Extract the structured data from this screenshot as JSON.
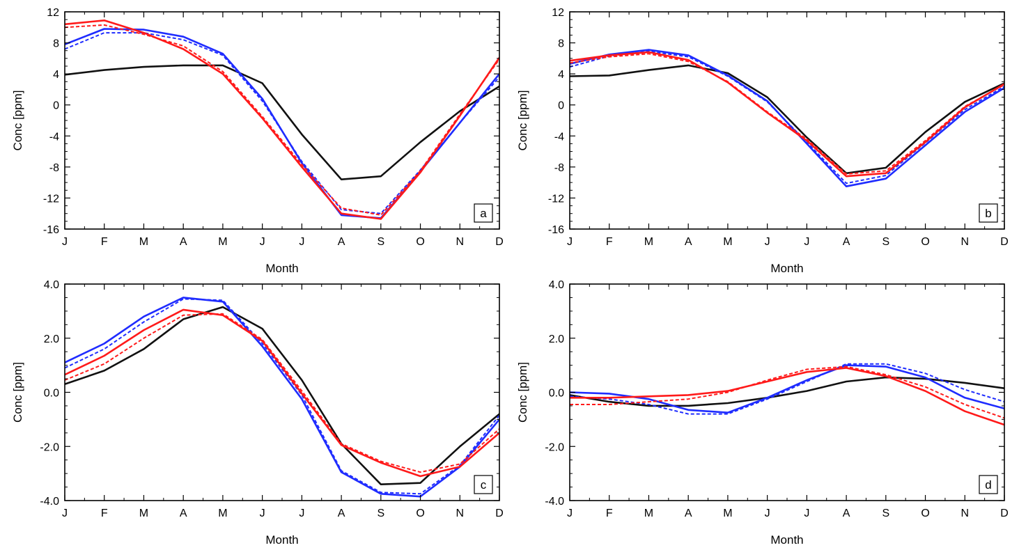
{
  "colors": {
    "black": "#111111",
    "blue": "#1f2cff",
    "red": "#ff1a1a"
  },
  "chart_data": [
    {
      "panel": "a",
      "type": "line",
      "x": [
        "J",
        "F",
        "M",
        "A",
        "M",
        "J",
        "J",
        "A",
        "S",
        "O",
        "N",
        "D"
      ],
      "xlabel": "Month",
      "ylabel": "Conc [ppm]",
      "ylim": [
        -16,
        12
      ],
      "yticks": [
        -16,
        -12,
        -8,
        -4,
        0,
        4,
        8,
        12
      ],
      "ytick_labels": [
        "-16",
        "-12",
        "-8",
        "-4",
        "0",
        "4",
        "8",
        "12"
      ],
      "series": [
        {
          "color": "black",
          "style": "solid",
          "values": [
            3.9,
            4.5,
            4.9,
            5.1,
            5.1,
            2.8,
            -3.8,
            -9.6,
            -9.2,
            -4.8,
            -0.8,
            2.4
          ]
        },
        {
          "color": "blue",
          "style": "solid",
          "values": [
            7.8,
            9.8,
            9.7,
            8.8,
            6.6,
            0.8,
            -7.5,
            -14.2,
            -14.6,
            -8.6,
            -2.3,
            4.0
          ]
        },
        {
          "color": "blue",
          "style": "dashed",
          "values": [
            7.2,
            9.3,
            9.3,
            8.4,
            6.4,
            0.5,
            -7.3,
            -13.5,
            -14.0,
            -8.4,
            -2.3,
            3.6
          ]
        },
        {
          "color": "red",
          "style": "solid",
          "values": [
            10.4,
            10.9,
            9.3,
            7.2,
            4.0,
            -1.7,
            -8.0,
            -14.0,
            -14.7,
            -8.7,
            -1.4,
            6.1
          ]
        },
        {
          "color": "red",
          "style": "dashed",
          "values": [
            10.0,
            10.3,
            9.1,
            7.6,
            4.3,
            -1.5,
            -7.7,
            -13.3,
            -14.2,
            -8.5,
            -1.2,
            5.9
          ]
        }
      ]
    },
    {
      "panel": "b",
      "type": "line",
      "x": [
        "J",
        "F",
        "M",
        "A",
        "M",
        "J",
        "J",
        "A",
        "S",
        "O",
        "N",
        "D"
      ],
      "xlabel": "Month",
      "ylabel": "Conc [ppm]",
      "ylim": [
        -16,
        12
      ],
      "yticks": [
        -16,
        -12,
        -8,
        -4,
        0,
        4,
        8,
        12
      ],
      "ytick_labels": [
        "-16",
        "-12",
        "-8",
        "-4",
        "0",
        "4",
        "8",
        "12"
      ],
      "series": [
        {
          "color": "black",
          "style": "solid",
          "values": [
            3.7,
            3.8,
            4.5,
            5.1,
            4.1,
            1.0,
            -4.2,
            -8.8,
            -8.1,
            -3.5,
            0.4,
            2.8
          ]
        },
        {
          "color": "blue",
          "style": "solid",
          "values": [
            5.3,
            6.5,
            7.1,
            6.4,
            3.8,
            0.5,
            -5.0,
            -10.5,
            -9.5,
            -5.2,
            -0.9,
            2.2
          ]
        },
        {
          "color": "blue",
          "style": "dashed",
          "values": [
            4.9,
            6.3,
            6.9,
            6.2,
            3.7,
            0.4,
            -4.8,
            -10.1,
            -9.1,
            -4.9,
            -0.6,
            2.4
          ]
        },
        {
          "color": "red",
          "style": "solid",
          "values": [
            5.7,
            6.4,
            6.8,
            5.8,
            2.9,
            -1.0,
            -4.6,
            -9.2,
            -8.8,
            -4.8,
            -0.3,
            2.7
          ]
        },
        {
          "color": "red",
          "style": "dashed",
          "values": [
            5.4,
            6.2,
            6.6,
            5.6,
            3.0,
            -0.9,
            -4.4,
            -8.9,
            -8.5,
            -4.6,
            -0.2,
            2.6
          ]
        }
      ]
    },
    {
      "panel": "c",
      "type": "line",
      "x": [
        "J",
        "F",
        "M",
        "A",
        "M",
        "J",
        "J",
        "A",
        "S",
        "O",
        "N",
        "D"
      ],
      "xlabel": "Month",
      "ylabel": "Conc [ppm]",
      "ylim": [
        -4,
        4
      ],
      "yticks": [
        -4,
        -2,
        0,
        2,
        4
      ],
      "ytick_labels": [
        "-4.0",
        "-2.0",
        "0.0",
        "2.0",
        "4.0"
      ],
      "series": [
        {
          "color": "black",
          "style": "solid",
          "values": [
            0.3,
            0.8,
            1.6,
            2.7,
            3.15,
            2.35,
            0.45,
            -1.9,
            -3.4,
            -3.35,
            -2.0,
            -0.8
          ]
        },
        {
          "color": "blue",
          "style": "solid",
          "values": [
            1.1,
            1.8,
            2.8,
            3.5,
            3.35,
            1.7,
            -0.25,
            -2.95,
            -3.75,
            -3.85,
            -2.75,
            -1.0
          ]
        },
        {
          "color": "blue",
          "style": "dashed",
          "values": [
            0.9,
            1.6,
            2.6,
            3.45,
            3.4,
            1.8,
            -0.1,
            -2.9,
            -3.7,
            -3.75,
            -2.7,
            -0.85
          ]
        },
        {
          "color": "red",
          "style": "solid",
          "values": [
            0.65,
            1.35,
            2.3,
            3.05,
            2.85,
            1.9,
            -0.05,
            -1.95,
            -2.6,
            -3.1,
            -2.75,
            -1.5
          ]
        },
        {
          "color": "red",
          "style": "dashed",
          "values": [
            0.45,
            1.05,
            2.0,
            2.85,
            2.9,
            1.95,
            0.05,
            -1.9,
            -2.55,
            -2.95,
            -2.65,
            -1.35
          ]
        }
      ]
    },
    {
      "panel": "d",
      "type": "line",
      "x": [
        "J",
        "F",
        "M",
        "A",
        "M",
        "J",
        "J",
        "A",
        "S",
        "O",
        "N",
        "D"
      ],
      "xlabel": "Month",
      "ylabel": "Conc [ppm]",
      "ylim": [
        -4,
        4
      ],
      "yticks": [
        -4,
        -2,
        0,
        2,
        4
      ],
      "ytick_labels": [
        "-4.0",
        "-2.0",
        "0.0",
        "2.0",
        "4.0"
      ],
      "series": [
        {
          "color": "black",
          "style": "solid",
          "values": [
            -0.1,
            -0.35,
            -0.5,
            -0.5,
            -0.4,
            -0.2,
            0.05,
            0.4,
            0.55,
            0.5,
            0.35,
            0.15
          ]
        },
        {
          "color": "blue",
          "style": "solid",
          "values": [
            0.0,
            -0.05,
            -0.25,
            -0.65,
            -0.75,
            -0.2,
            0.45,
            1.0,
            0.95,
            0.55,
            -0.2,
            -0.6
          ]
        },
        {
          "color": "blue",
          "style": "dashed",
          "values": [
            -0.15,
            -0.25,
            -0.45,
            -0.8,
            -0.8,
            -0.25,
            0.4,
            1.05,
            1.05,
            0.7,
            0.1,
            -0.35
          ]
        },
        {
          "color": "red",
          "style": "solid",
          "values": [
            -0.2,
            -0.2,
            -0.15,
            -0.1,
            0.05,
            0.4,
            0.75,
            0.9,
            0.6,
            0.05,
            -0.7,
            -1.2
          ]
        },
        {
          "color": "red",
          "style": "dashed",
          "values": [
            -0.45,
            -0.45,
            -0.35,
            -0.25,
            0.0,
            0.45,
            0.85,
            0.95,
            0.65,
            0.2,
            -0.45,
            -0.95
          ]
        }
      ]
    }
  ]
}
